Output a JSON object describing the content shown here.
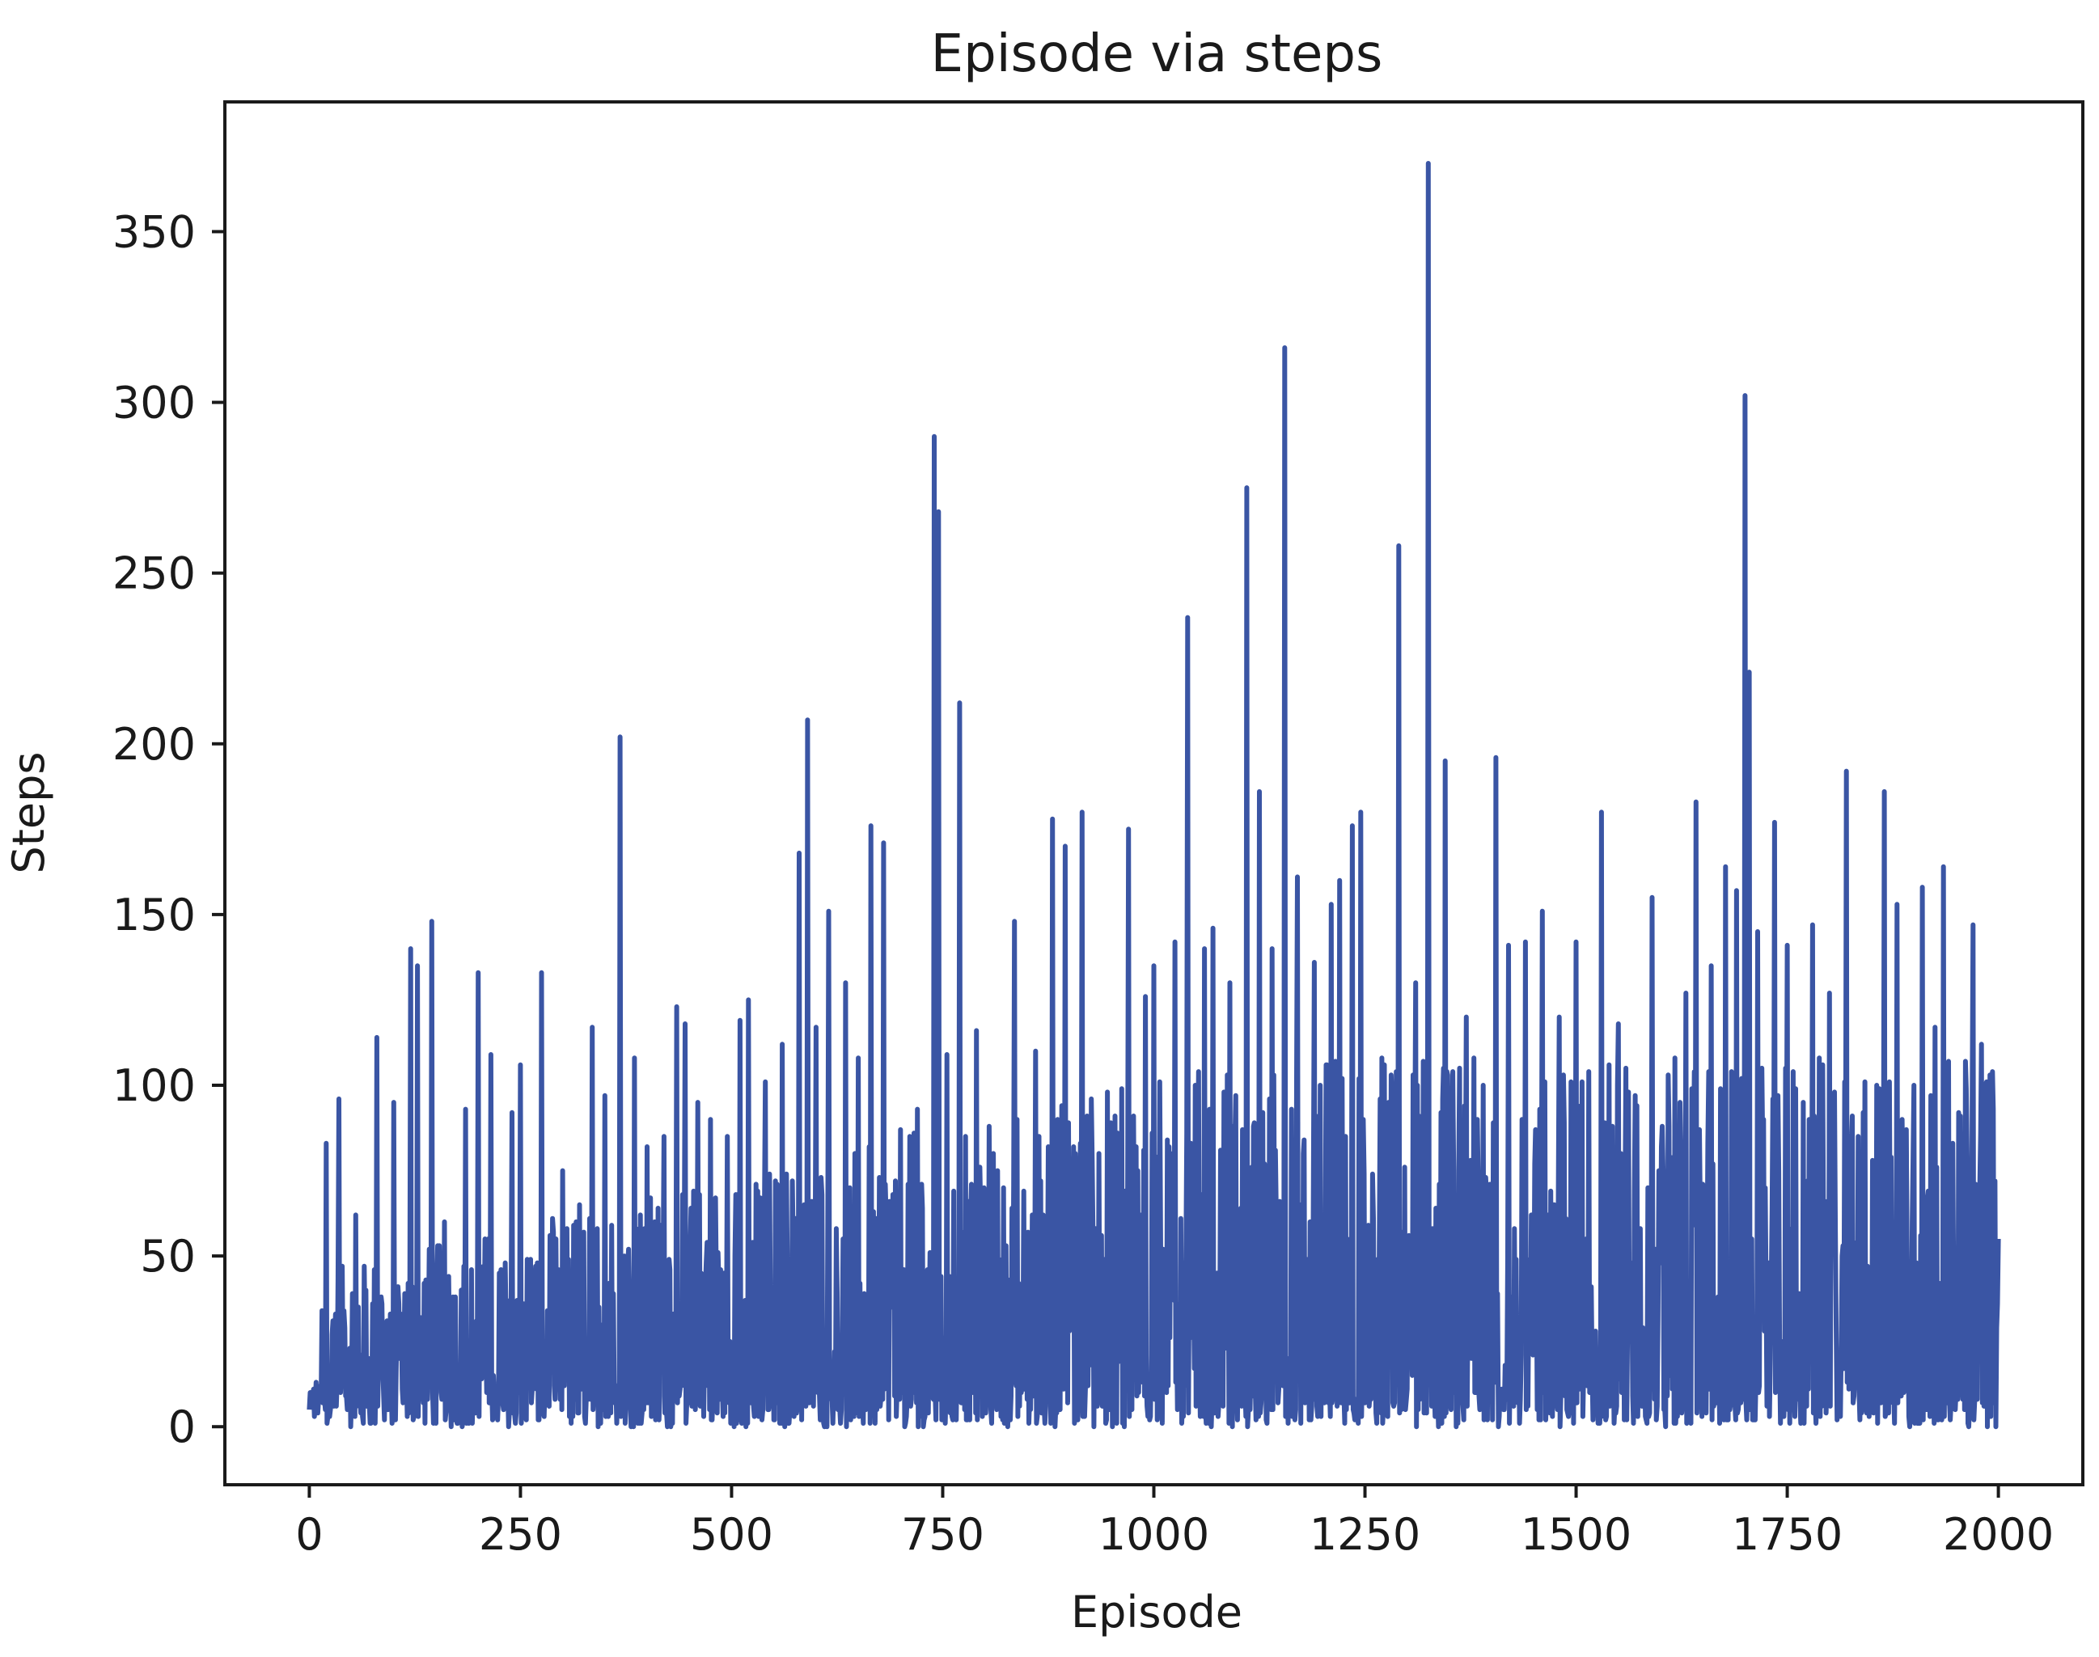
{
  "chart_data": {
    "type": "line",
    "title": "Episode via steps",
    "xlabel": "Episode",
    "ylabel": "Steps",
    "xlim": [
      -100,
      2100
    ],
    "ylim": [
      -17,
      388
    ],
    "grid": false,
    "legend": "none",
    "x_ticks": [
      0,
      250,
      500,
      750,
      1000,
      1250,
      1500,
      1750,
      2000
    ],
    "x_tick_labels": [
      "0",
      "250",
      "500",
      "750",
      "1000",
      "1250",
      "1500",
      "1750",
      "2000"
    ],
    "y_ticks": [
      0,
      50,
      100,
      150,
      200,
      250,
      300,
      350
    ],
    "y_tick_labels": [
      "0",
      "50",
      "100",
      "150",
      "200",
      "250",
      "300",
      "350"
    ],
    "line_color": "#3a55a4",
    "n_points": 2001,
    "series": [
      {
        "name": "",
        "peaks": [
          {
            "x": 0,
            "y": 5
          },
          {
            "x": 20,
            "y": 83
          },
          {
            "x": 35,
            "y": 96
          },
          {
            "x": 55,
            "y": 62
          },
          {
            "x": 80,
            "y": 114
          },
          {
            "x": 100,
            "y": 95
          },
          {
            "x": 120,
            "y": 140
          },
          {
            "x": 128,
            "y": 135
          },
          {
            "x": 145,
            "y": 148
          },
          {
            "x": 160,
            "y": 60
          },
          {
            "x": 185,
            "y": 93
          },
          {
            "x": 200,
            "y": 133
          },
          {
            "x": 215,
            "y": 109
          },
          {
            "x": 240,
            "y": 92
          },
          {
            "x": 250,
            "y": 106
          },
          {
            "x": 275,
            "y": 133
          },
          {
            "x": 300,
            "y": 75
          },
          {
            "x": 320,
            "y": 65
          },
          {
            "x": 335,
            "y": 117
          },
          {
            "x": 350,
            "y": 97
          },
          {
            "x": 368,
            "y": 202
          },
          {
            "x": 385,
            "y": 108
          },
          {
            "x": 400,
            "y": 82
          },
          {
            "x": 420,
            "y": 85
          },
          {
            "x": 435,
            "y": 123
          },
          {
            "x": 445,
            "y": 118
          },
          {
            "x": 460,
            "y": 95
          },
          {
            "x": 475,
            "y": 90
          },
          {
            "x": 495,
            "y": 85
          },
          {
            "x": 510,
            "y": 119
          },
          {
            "x": 520,
            "y": 125
          },
          {
            "x": 540,
            "y": 101
          },
          {
            "x": 560,
            "y": 112
          },
          {
            "x": 580,
            "y": 168
          },
          {
            "x": 590,
            "y": 207
          },
          {
            "x": 600,
            "y": 117
          },
          {
            "x": 615,
            "y": 151
          },
          {
            "x": 635,
            "y": 130
          },
          {
            "x": 650,
            "y": 108
          },
          {
            "x": 665,
            "y": 176
          },
          {
            "x": 680,
            "y": 171
          },
          {
            "x": 700,
            "y": 87
          },
          {
            "x": 720,
            "y": 93
          },
          {
            "x": 740,
            "y": 290
          },
          {
            "x": 745,
            "y": 268
          },
          {
            "x": 755,
            "y": 109
          },
          {
            "x": 770,
            "y": 212
          },
          {
            "x": 790,
            "y": 116
          },
          {
            "x": 810,
            "y": 80
          },
          {
            "x": 835,
            "y": 148
          },
          {
            "x": 860,
            "y": 110
          },
          {
            "x": 880,
            "y": 178
          },
          {
            "x": 895,
            "y": 170
          },
          {
            "x": 915,
            "y": 180
          },
          {
            "x": 935,
            "y": 80
          },
          {
            "x": 950,
            "y": 50
          },
          {
            "x": 970,
            "y": 175
          },
          {
            "x": 990,
            "y": 126
          },
          {
            "x": 1000,
            "y": 135
          },
          {
            "x": 1025,
            "y": 142
          },
          {
            "x": 1040,
            "y": 237
          },
          {
            "x": 1060,
            "y": 140
          },
          {
            "x": 1070,
            "y": 146
          },
          {
            "x": 1090,
            "y": 130
          },
          {
            "x": 1110,
            "y": 275
          },
          {
            "x": 1125,
            "y": 186
          },
          {
            "x": 1140,
            "y": 140
          },
          {
            "x": 1155,
            "y": 316
          },
          {
            "x": 1170,
            "y": 161
          },
          {
            "x": 1190,
            "y": 136
          },
          {
            "x": 1210,
            "y": 153
          },
          {
            "x": 1220,
            "y": 160
          },
          {
            "x": 1235,
            "y": 176
          },
          {
            "x": 1245,
            "y": 180
          },
          {
            "x": 1270,
            "y": 108
          },
          {
            "x": 1290,
            "y": 258
          },
          {
            "x": 1310,
            "y": 130
          },
          {
            "x": 1325,
            "y": 370
          },
          {
            "x": 1345,
            "y": 195
          },
          {
            "x": 1370,
            "y": 120
          },
          {
            "x": 1390,
            "y": 100
          },
          {
            "x": 1405,
            "y": 196
          },
          {
            "x": 1420,
            "y": 141
          },
          {
            "x": 1440,
            "y": 142
          },
          {
            "x": 1460,
            "y": 151
          },
          {
            "x": 1480,
            "y": 120
          },
          {
            "x": 1500,
            "y": 142
          },
          {
            "x": 1515,
            "y": 104
          },
          {
            "x": 1530,
            "y": 180
          },
          {
            "x": 1550,
            "y": 118
          },
          {
            "x": 1570,
            "y": 97
          },
          {
            "x": 1590,
            "y": 155
          },
          {
            "x": 1610,
            "y": 88
          },
          {
            "x": 1630,
            "y": 127
          },
          {
            "x": 1642,
            "y": 183
          },
          {
            "x": 1660,
            "y": 135
          },
          {
            "x": 1677,
            "y": 164
          },
          {
            "x": 1690,
            "y": 157
          },
          {
            "x": 1700,
            "y": 302
          },
          {
            "x": 1705,
            "y": 221
          },
          {
            "x": 1715,
            "y": 145
          },
          {
            "x": 1735,
            "y": 177
          },
          {
            "x": 1750,
            "y": 141
          },
          {
            "x": 1780,
            "y": 147
          },
          {
            "x": 1800,
            "y": 127
          },
          {
            "x": 1820,
            "y": 192
          },
          {
            "x": 1840,
            "y": 92
          },
          {
            "x": 1865,
            "y": 186
          },
          {
            "x": 1880,
            "y": 153
          },
          {
            "x": 1900,
            "y": 100
          },
          {
            "x": 1910,
            "y": 158
          },
          {
            "x": 1925,
            "y": 117
          },
          {
            "x": 1935,
            "y": 164
          },
          {
            "x": 1955,
            "y": 91
          },
          {
            "x": 1970,
            "y": 147
          },
          {
            "x": 1980,
            "y": 112
          },
          {
            "x": 1990,
            "y": 103
          },
          {
            "x": 2000,
            "y": 55
          }
        ]
      }
    ]
  }
}
